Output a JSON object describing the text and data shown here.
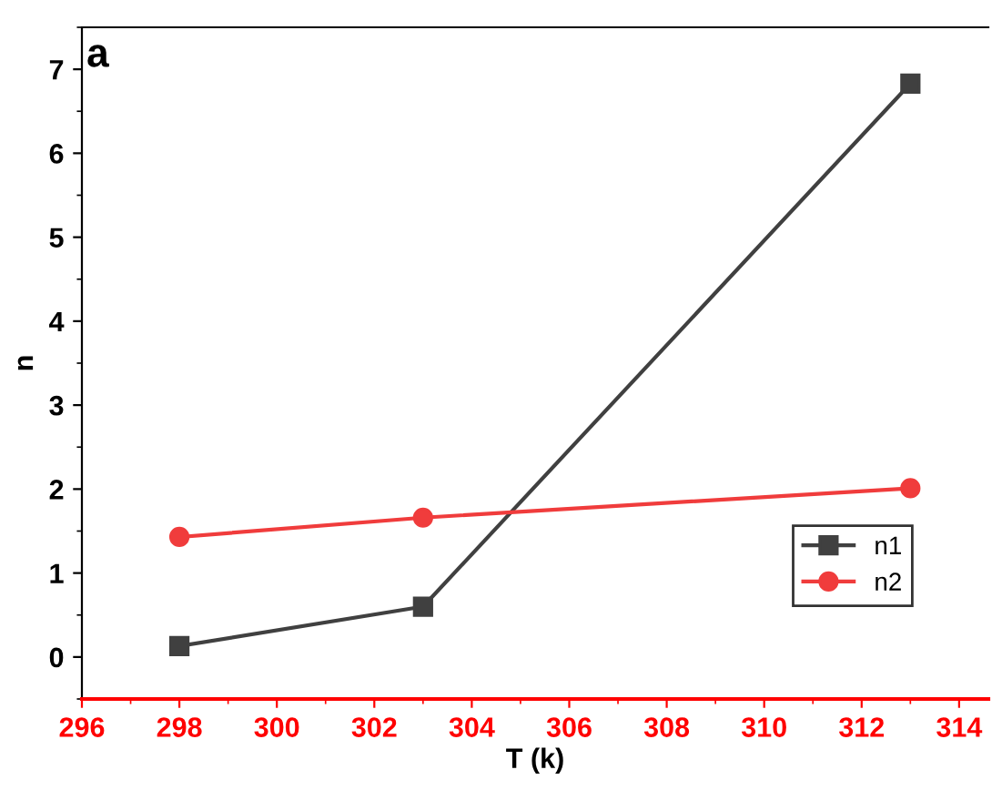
{
  "chart_data": {
    "type": "line",
    "xlabel": "T (k)",
    "ylabel": "n",
    "annotations": [
      "a"
    ],
    "x": [
      298,
      303,
      313
    ],
    "series": [
      {
        "name": "n1",
        "color": "#404040",
        "values": [
          0.13,
          0.6,
          6.83
        ],
        "marker": "square"
      },
      {
        "name": "n2",
        "color": "#f03c3c",
        "values": [
          1.43,
          1.66,
          2.01
        ],
        "marker": "circle"
      }
    ],
    "xlim": [
      296,
      314.6
    ],
    "xticks": [
      296,
      298,
      300,
      302,
      304,
      306,
      308,
      310,
      312,
      314
    ],
    "ylim": [
      -0.5,
      7.5
    ],
    "yticks": [
      0,
      1,
      2,
      3,
      4,
      5,
      6,
      7
    ],
    "grid": false,
    "legend": "bottom right",
    "line_style": "solid"
  }
}
